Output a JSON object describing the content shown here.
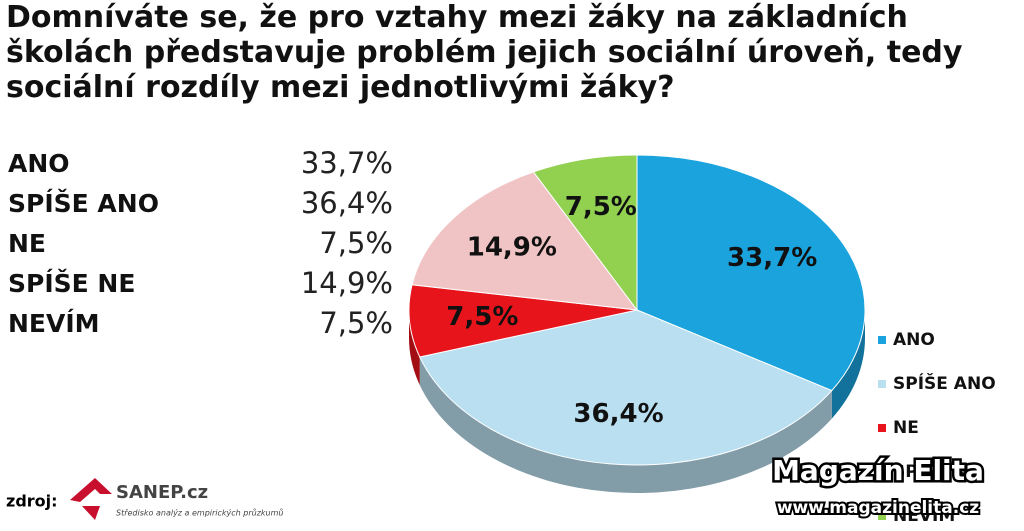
{
  "chart_data": {
    "type": "pie",
    "title": "Domníváte se, že pro vztahy mezi žáky na základních školách představuje problém jejich sociální úroveň, tedy sociální rozdíly mezi jednotlivými žáky?",
    "categories": [
      "ANO",
      "SPÍŠE ANO",
      "NE",
      "SPÍŠE NE",
      "NEVÍM"
    ],
    "values": [
      33.7,
      36.4,
      7.5,
      14.9,
      7.5
    ],
    "value_labels": [
      "33,7%",
      "36,4%",
      "7,5%",
      "14,9%",
      "7,5%"
    ],
    "colors": [
      "#1aa3dd",
      "#b9dff0",
      "#e8141c",
      "#f0c4c4",
      "#92d050"
    ],
    "legend": "right"
  },
  "source": {
    "label": "zdroj:",
    "name": "SANEP.cz",
    "tagline": "Středisko analýz a empirických průzkumů"
  },
  "watermark": {
    "name": "Magazín Elita",
    "url": "www.magazinelita.cz"
  }
}
